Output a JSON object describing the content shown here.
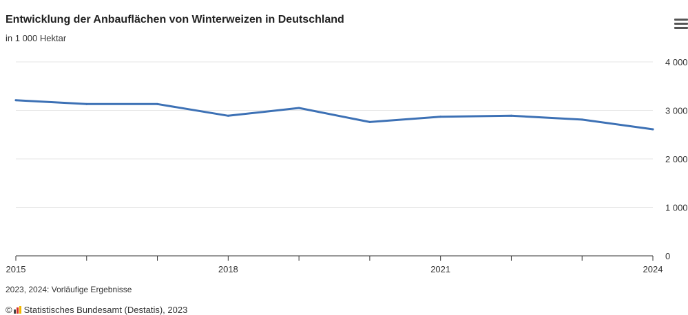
{
  "chart_data": {
    "type": "line",
    "title": "Entwicklung der Anbauflächen von Winterweizen in Deutschland",
    "subtitle": "in 1 000 Hektar",
    "x": [
      2015,
      2016,
      2017,
      2018,
      2019,
      2020,
      2021,
      2022,
      2023,
      2024
    ],
    "x_tick_labels": [
      {
        "x": 2015,
        "label": "2015"
      },
      {
        "x": 2018,
        "label": "2018"
      },
      {
        "x": 2021,
        "label": "2021"
      },
      {
        "x": 2024,
        "label": "2024"
      }
    ],
    "y_ticks": [
      {
        "value": 0,
        "label": "0"
      },
      {
        "value": 1000,
        "label": "1 000"
      },
      {
        "value": 2000,
        "label": "2 000"
      },
      {
        "value": 3000,
        "label": "3 000"
      },
      {
        "value": 4000,
        "label": "4 000"
      }
    ],
    "ylim": [
      0,
      4000
    ],
    "series": [
      {
        "values": [
          3210,
          3130,
          3130,
          2890,
          3050,
          2760,
          2870,
          2890,
          2810,
          2610
        ],
        "color": "#3d71b5"
      }
    ],
    "grid": true,
    "y_axis_position": "right"
  },
  "note": "2023, 2024: Vorläufige Ergebnisse",
  "source": {
    "copyright": "©",
    "text": "Statistisches Bundesamt (Destatis), 2023",
    "logo_colors": [
      "#444444",
      "#d4302a",
      "#f2b600"
    ]
  },
  "menu_icon": "hamburger-menu-icon",
  "colors": {
    "grid": "#e6e6e6",
    "axis": "#333333",
    "text": "#222222"
  }
}
